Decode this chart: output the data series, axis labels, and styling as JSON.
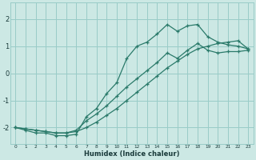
{
  "xlabel": "Humidex (Indice chaleur)",
  "ylabel": "",
  "bg_color": "#cce8e4",
  "grid_color": "#99ccc8",
  "line_color": "#2a7a6a",
  "xlim": [
    -0.5,
    23.5
  ],
  "ylim": [
    -2.6,
    2.6
  ],
  "yticks": [
    -2,
    -1,
    0,
    1,
    2
  ],
  "xticks": [
    0,
    1,
    2,
    3,
    4,
    5,
    6,
    7,
    8,
    9,
    10,
    11,
    12,
    13,
    14,
    15,
    16,
    17,
    18,
    19,
    20,
    21,
    22,
    23
  ],
  "line1_x": [
    0,
    1,
    2,
    3,
    4,
    5,
    6,
    7,
    8,
    9,
    10,
    11,
    12,
    13,
    14,
    15,
    16,
    17,
    18,
    19,
    20,
    21,
    22,
    23
  ],
  "line1_y": [
    -2.0,
    -2.1,
    -2.2,
    -2.2,
    -2.3,
    -2.3,
    -2.25,
    -1.6,
    -1.3,
    -0.75,
    -0.35,
    0.55,
    1.0,
    1.15,
    1.45,
    1.8,
    1.55,
    1.75,
    1.8,
    1.35,
    1.15,
    1.05,
    1.0,
    0.9
  ],
  "line2_x": [
    0,
    1,
    2,
    3,
    4,
    5,
    6,
    7,
    8,
    9,
    10,
    11,
    12,
    13,
    14,
    15,
    16,
    17,
    18,
    19,
    20,
    21,
    22,
    23
  ],
  "line2_y": [
    -2.0,
    -2.05,
    -2.1,
    -2.15,
    -2.2,
    -2.2,
    -2.15,
    -2.0,
    -1.8,
    -1.55,
    -1.3,
    -1.0,
    -0.7,
    -0.4,
    -0.1,
    0.2,
    0.45,
    0.7,
    0.9,
    1.0,
    1.1,
    1.15,
    1.2,
    0.9
  ],
  "line3_x": [
    0,
    1,
    2,
    3,
    4,
    5,
    6,
    7,
    8,
    9,
    10,
    11,
    12,
    13,
    14,
    15,
    16,
    17,
    18,
    19,
    20,
    21,
    22,
    23
  ],
  "line3_y": [
    -2.0,
    -2.05,
    -2.1,
    -2.15,
    -2.2,
    -2.2,
    -2.1,
    -1.75,
    -1.5,
    -1.2,
    -0.85,
    -0.5,
    -0.2,
    0.1,
    0.4,
    0.75,
    0.55,
    0.85,
    1.1,
    0.85,
    0.75,
    0.8,
    0.8,
    0.85
  ]
}
